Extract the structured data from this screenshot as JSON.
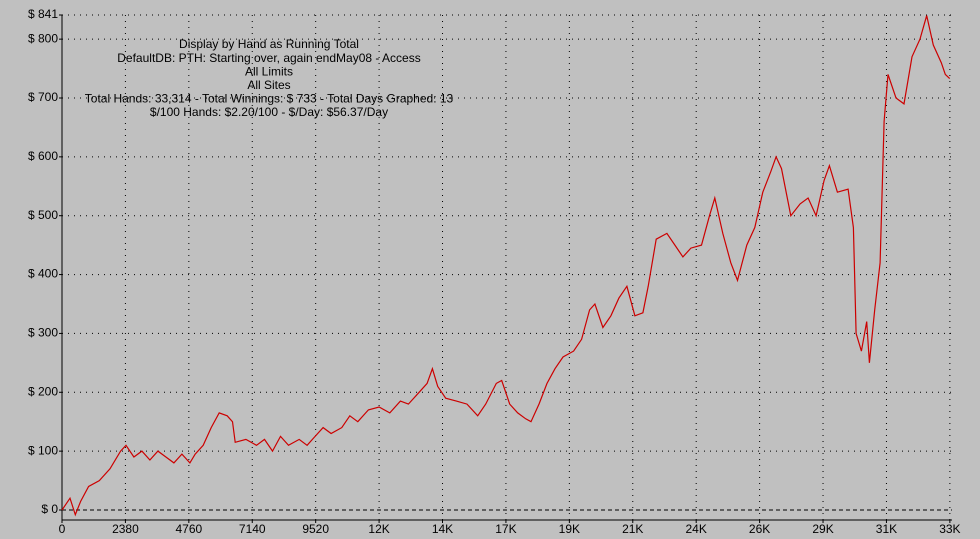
{
  "chart_data": {
    "type": "line",
    "annotations": [
      "Display by Hand as Running Total",
      "DefaultDB: PTH: Starting over, again endMay08 - Access",
      "All Limits",
      "All Sites",
      "Total Hands: 33,314 - Total Winnings: $ 733 - Total Days Graphed: 13",
      "$/100 Hands: $2.20/100 - $/Day: $56.37/Day"
    ],
    "xlim": [
      0,
      33400
    ],
    "ylim": [
      -17,
      841
    ],
    "xticks": [
      0,
      2380,
      4760,
      7140,
      9520,
      {
        "value": 11900,
        "label": "12K"
      },
      {
        "value": 14280,
        "label": "14K"
      },
      {
        "value": 16660,
        "label": "17K"
      },
      {
        "value": 19040,
        "label": "19K"
      },
      {
        "value": 21420,
        "label": "21K"
      },
      {
        "value": 23800,
        "label": "24K"
      },
      {
        "value": 26180,
        "label": "26K"
      },
      {
        "value": 28560,
        "label": "29K"
      },
      {
        "value": 30940,
        "label": "31K"
      },
      {
        "value": 33320,
        "label": "33K"
      }
    ],
    "yticks": [
      {
        "value": 0,
        "label": "$ 0"
      },
      {
        "value": 100,
        "label": "$ 100"
      },
      {
        "value": 200,
        "label": "$ 200"
      },
      {
        "value": 300,
        "label": "$ 300"
      },
      {
        "value": 400,
        "label": "$ 400"
      },
      {
        "value": 500,
        "label": "$ 500"
      },
      {
        "value": 600,
        "label": "$ 600"
      },
      {
        "value": 700,
        "label": "$ 700"
      },
      {
        "value": 800,
        "label": "$ 800"
      },
      {
        "value": 841,
        "label": "$ 841"
      }
    ],
    "grid": true,
    "color": "#cc0000",
    "x": [
      0,
      300,
      500,
      700,
      1000,
      1400,
      1800,
      2200,
      2400,
      2700,
      3000,
      3300,
      3600,
      3900,
      4200,
      4500,
      4800,
      5000,
      5300,
      5600,
      5900,
      6200,
      6400,
      6500,
      6900,
      7300,
      7600,
      7900,
      8200,
      8500,
      8900,
      9200,
      9500,
      9800,
      10100,
      10500,
      10800,
      11100,
      11500,
      11900,
      12300,
      12700,
      13000,
      13400,
      13700,
      13900,
      14100,
      14400,
      14800,
      15200,
      15600,
      15900,
      16300,
      16500,
      16800,
      17100,
      17400,
      17600,
      17900,
      18200,
      18500,
      18800,
      19200,
      19500,
      19800,
      20000,
      20300,
      20600,
      20900,
      21200,
      21500,
      21800,
      22000,
      22300,
      22700,
      23000,
      23300,
      23600,
      24000,
      24300,
      24500,
      24800,
      25100,
      25350,
      25700,
      26000,
      26300,
      26600,
      26800,
      27000,
      27350,
      27700,
      28000,
      28300,
      28600,
      28800,
      29100,
      29500,
      29700,
      29800,
      30000,
      30200,
      30300,
      30500,
      30700,
      30850,
      31000,
      31300,
      31600,
      31900,
      32200,
      32450,
      32700,
      33000,
      33150,
      33314
    ],
    "values": [
      0,
      20,
      -8,
      15,
      40,
      50,
      70,
      100,
      110,
      90,
      100,
      85,
      100,
      90,
      80,
      95,
      80,
      95,
      110,
      140,
      165,
      160,
      150,
      115,
      120,
      110,
      120,
      100,
      125,
      110,
      120,
      110,
      125,
      140,
      130,
      140,
      160,
      150,
      170,
      175,
      165,
      185,
      180,
      200,
      215,
      240,
      210,
      190,
      185,
      180,
      160,
      180,
      215,
      220,
      180,
      165,
      155,
      150,
      180,
      215,
      240,
      260,
      270,
      290,
      340,
      350,
      310,
      330,
      360,
      380,
      330,
      335,
      380,
      460,
      470,
      450,
      430,
      445,
      450,
      500,
      530,
      470,
      420,
      390,
      450,
      480,
      540,
      575,
      600,
      580,
      500,
      520,
      530,
      500,
      560,
      585,
      540,
      545,
      480,
      300,
      270,
      320,
      250,
      340,
      420,
      660,
      740,
      700,
      690,
      770,
      800,
      840,
      790,
      760,
      740,
      733
    ]
  }
}
